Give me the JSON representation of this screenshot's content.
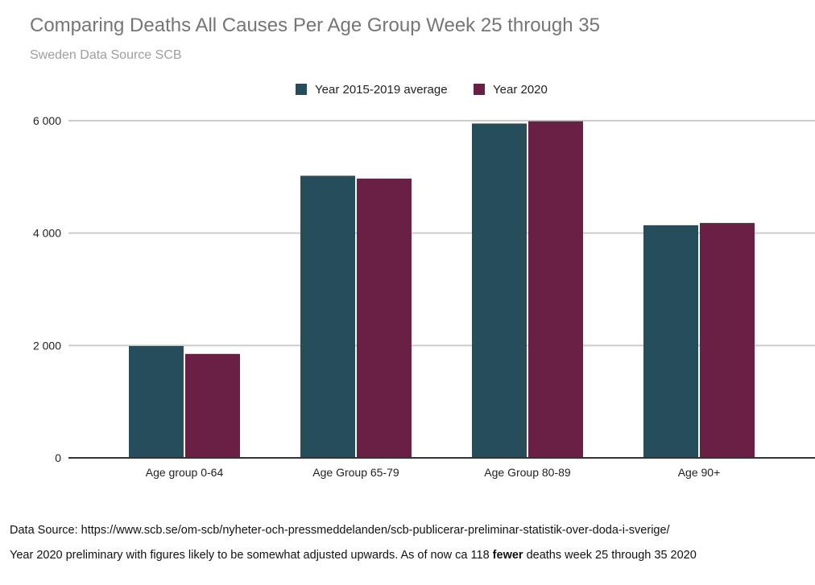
{
  "chart_data": {
    "type": "bar",
    "title": "Comparing Deaths All Causes Per Age Group Week 25 through 35",
    "subtitle": "Sweden Data Source SCB",
    "categories": [
      "Age group 0-64",
      "Age Group 65-79",
      "Age Group 80-89",
      "Age 90+"
    ],
    "series": [
      {
        "name": "Year 2015-2019 average",
        "color": "#264d5a",
        "values": [
          1990,
          5020,
          5950,
          4140
        ]
      },
      {
        "name": "Year 2020",
        "color": "#6a2044",
        "values": [
          1850,
          4970,
          5990,
          4180
        ]
      }
    ],
    "yticks": [
      0,
      2000,
      4000,
      6000
    ],
    "ytick_labels": [
      "0",
      "2 000",
      "4 000",
      "6 000"
    ],
    "ylim": [
      0,
      6000
    ],
    "grid": true,
    "legend_position": "top-center"
  },
  "footer": {
    "source": "Data Source: https://www.scb.se/om-scb/nyheter-och-pressmeddelanden/scb-publicerar-preliminar-statistik-over-doda-i-sverige/",
    "note_before": "Year 2020 preliminary with figures likely to be somewhat adjusted upwards. As of now ca 118 ",
    "note_bold": "fewer",
    "note_after": " deaths week 25 through 35 2020"
  }
}
